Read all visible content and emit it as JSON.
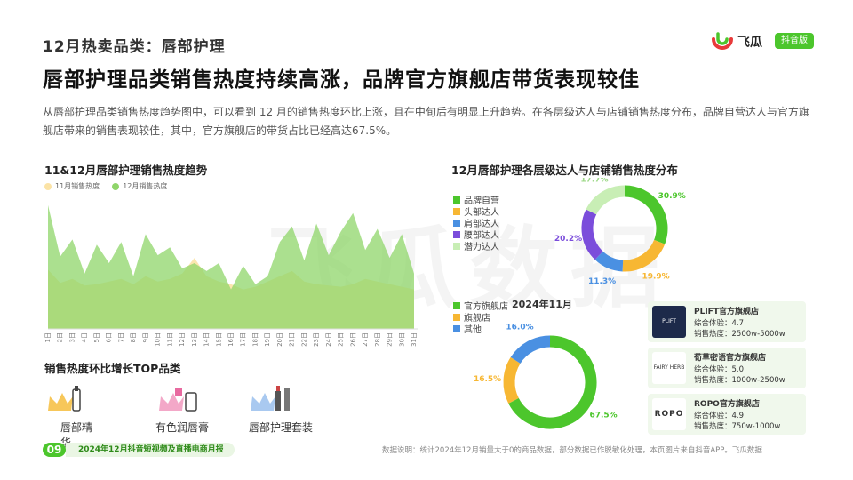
{
  "page": {
    "section_title": "12月热卖品类：唇部护理",
    "headline": "唇部护理品类销售热度持续高涨，品牌官方旗舰店带货表现较佳",
    "intro": "从唇部护理品类销售热度趋势图中，可以看到 12 月的销售热度环比上涨，且在中旬后有明显上升趋势。在各层级达人与店铺销售热度分布，品牌自营达人与官方旗舰店带来的销售表现较佳，其中，官方旗舰店的带货占比已经高达67.5%。",
    "watermark": "飞瓜数据"
  },
  "logo": {
    "name": "飞瓜",
    "badge": "抖音版",
    "icon": "feigua-logo-icon"
  },
  "trend_chart": {
    "title": "11&12月唇部护理销售热度趋势",
    "legend": [
      "11月销售热度",
      "12月销售热度"
    ]
  },
  "top_categories": {
    "title": "销售热度环比增长TOP品类",
    "items": [
      {
        "label": "唇部精华",
        "icon": "crown-lipstick-icon"
      },
      {
        "label": "有色润唇膏",
        "icon": "crown-lipbalm-icon"
      },
      {
        "label": "唇部护理套装",
        "icon": "crown-lipset-icon"
      }
    ]
  },
  "dist_chart": {
    "title": "12月唇部护理各层级达人与店铺销售热度分布",
    "subtitle": "2024年11月"
  },
  "stores": [
    {
      "name": "PLIFT官方旗舰店",
      "logo_text": "PLIFT",
      "score": "综合体验：4.7",
      "heat": "销售热度：2500w-5000w"
    },
    {
      "name": "荀草密语官方旗舰店",
      "logo_text": "FAIRY HERB",
      "score": "综合体验：5.0",
      "heat": "销售热度：1000w-2500w"
    },
    {
      "name": "ROPO官方旗舰店",
      "logo_text": "ROPO",
      "score": "综合体验：4.9",
      "heat": "销售热度：750w-1000w"
    }
  ],
  "footer": {
    "page_num": "09",
    "report": "2024年12月抖音短视频及直播电商月报",
    "note": "数据说明：统计2024年12月销量大于0的商品数据，部分数据已作脱敏化处理，本页图片来自抖音APP。飞瓜数据"
  },
  "colors": {
    "accent_green": "#4cc62c",
    "orange": "#f7b733",
    "blue": "#4a90e2",
    "purple": "#7b4ddb",
    "light_green": "#c8eeb5",
    "nov_fill": "#fbe3a6",
    "dec_fill": "#8fd56a"
  },
  "chart_data": [
    {
      "type": "area",
      "title": "11&12月唇部护理销售热度趋势",
      "x": [
        "1日",
        "2日",
        "3日",
        "4日",
        "5日",
        "6日",
        "7日",
        "8日",
        "9日",
        "10日",
        "11日",
        "12日",
        "13日",
        "14日",
        "15日",
        "16日",
        "17日",
        "18日",
        "19日",
        "20日",
        "21日",
        "22日",
        "23日",
        "24日",
        "25日",
        "26日",
        "27日",
        "28日",
        "29日",
        "30日",
        "31日"
      ],
      "series": [
        {
          "name": "11月销售热度",
          "values": [
            45,
            35,
            38,
            33,
            34,
            36,
            38,
            34,
            40,
            36,
            38,
            42,
            54,
            40,
            36,
            34,
            30,
            32,
            36,
            40,
            44,
            36,
            34,
            33,
            32,
            34,
            38,
            36,
            34,
            32,
            30
          ]
        },
        {
          "name": "12月销售热度",
          "values": [
            94,
            55,
            68,
            42,
            64,
            50,
            66,
            40,
            72,
            56,
            62,
            46,
            50,
            44,
            50,
            30,
            48,
            34,
            40,
            66,
            78,
            52,
            80,
            56,
            74,
            88,
            60,
            76,
            54,
            72,
            42
          ]
        }
      ],
      "ylim": [
        0,
        100
      ],
      "grid": false,
      "legend_position": "top-left"
    },
    {
      "type": "pie",
      "title": "12月唇部护理各层级达人与店铺销售热度分布",
      "categories": [
        "品牌自营",
        "头部达人",
        "肩部达人",
        "腰部达人",
        "潜力达人"
      ],
      "values": [
        30.9,
        19.9,
        11.3,
        20.2,
        17.7
      ],
      "labels": [
        "30.9%",
        "19.9%",
        "11.3%",
        "20.2%",
        "17.7%"
      ],
      "colors": [
        "#4cc62c",
        "#f7b733",
        "#4a90e2",
        "#7b4ddb",
        "#c8eeb5"
      ],
      "legend_position": "left"
    },
    {
      "type": "pie",
      "title": "2024年11月",
      "categories": [
        "官方旗舰店",
        "旗舰店",
        "其他"
      ],
      "values": [
        67.5,
        16.5,
        16.0
      ],
      "labels": [
        "67.5%",
        "16.5%",
        "16.0%"
      ],
      "colors": [
        "#4cc62c",
        "#f7b733",
        "#4a90e2"
      ],
      "legend_position": "left"
    }
  ]
}
